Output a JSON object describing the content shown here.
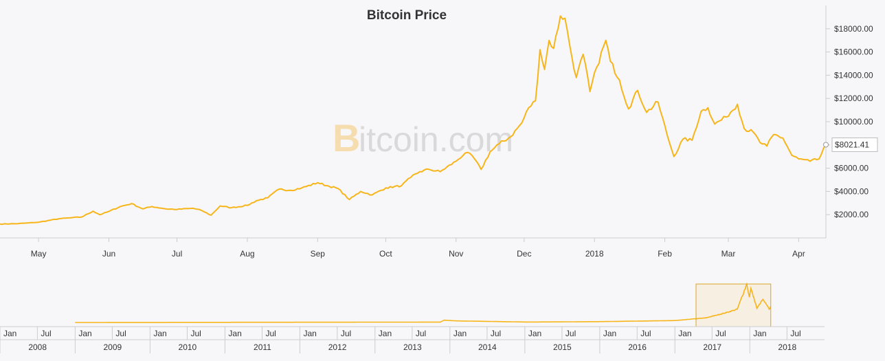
{
  "chart_data": {
    "type": "line",
    "title": "Bitcoin Price",
    "watermark": "Bitcoin.com",
    "line_color": "#f7b519",
    "current_value_label": "$8021.41",
    "current_value": 8021.41,
    "y_axis": {
      "position": "right",
      "range": [
        0,
        20000
      ],
      "tick_values": [
        2000,
        4000,
        6000,
        8000,
        10000,
        12000,
        14000,
        16000,
        18000
      ],
      "tick_labels": [
        "$2000.00",
        "$4000.00",
        "$6000.00",
        "$8000.00",
        "$10000.00",
        "$12000.00",
        "$14000.00",
        "$16000.00",
        "$18000.00"
      ]
    },
    "x_axis": {
      "range": [
        "2017-04-14",
        "2018-04-13"
      ],
      "tick_dates": [
        "2017-05-01",
        "2017-06-01",
        "2017-07-01",
        "2017-08-01",
        "2017-09-01",
        "2017-10-01",
        "2017-11-01",
        "2017-12-01",
        "2018-01-01",
        "2018-02-01",
        "2018-03-01",
        "2018-04-01"
      ],
      "tick_labels": [
        "May",
        "Jun",
        "Jul",
        "Aug",
        "Sep",
        "Oct",
        "Nov",
        "Dec",
        "2018",
        "Feb",
        "Mar",
        "Apr"
      ]
    },
    "series": [
      {
        "values": [
          {
            "x": "2017-04-14",
            "y": 1190
          },
          {
            "x": "2017-04-22",
            "y": 1230
          },
          {
            "x": "2017-05-01",
            "y": 1350
          },
          {
            "x": "2017-05-10",
            "y": 1650
          },
          {
            "x": "2017-05-15",
            "y": 1730
          },
          {
            "x": "2017-05-20",
            "y": 1800
          },
          {
            "x": "2017-05-25",
            "y": 2300
          },
          {
            "x": "2017-05-28",
            "y": 2000
          },
          {
            "x": "2017-06-01",
            "y": 2280
          },
          {
            "x": "2017-06-06",
            "y": 2700
          },
          {
            "x": "2017-06-11",
            "y": 2950
          },
          {
            "x": "2017-06-16",
            "y": 2500
          },
          {
            "x": "2017-06-20",
            "y": 2700
          },
          {
            "x": "2017-06-26",
            "y": 2500
          },
          {
            "x": "2017-07-01",
            "y": 2450
          },
          {
            "x": "2017-07-08",
            "y": 2550
          },
          {
            "x": "2017-07-12",
            "y": 2350
          },
          {
            "x": "2017-07-16",
            "y": 1950
          },
          {
            "x": "2017-07-20",
            "y": 2750
          },
          {
            "x": "2017-07-25",
            "y": 2600
          },
          {
            "x": "2017-08-01",
            "y": 2800
          },
          {
            "x": "2017-08-05",
            "y": 3200
          },
          {
            "x": "2017-08-10",
            "y": 3450
          },
          {
            "x": "2017-08-15",
            "y": 4200
          },
          {
            "x": "2017-08-20",
            "y": 4100
          },
          {
            "x": "2017-08-25",
            "y": 4300
          },
          {
            "x": "2017-09-01",
            "y": 4750
          },
          {
            "x": "2017-09-05",
            "y": 4500
          },
          {
            "x": "2017-09-10",
            "y": 4250
          },
          {
            "x": "2017-09-15",
            "y": 3300
          },
          {
            "x": "2017-09-20",
            "y": 4000
          },
          {
            "x": "2017-09-25",
            "y": 3700
          },
          {
            "x": "2017-10-01",
            "y": 4300
          },
          {
            "x": "2017-10-08",
            "y": 4500
          },
          {
            "x": "2017-10-12",
            "y": 5200
          },
          {
            "x": "2017-10-16",
            "y": 5700
          },
          {
            "x": "2017-10-20",
            "y": 5900
          },
          {
            "x": "2017-10-25",
            "y": 5700
          },
          {
            "x": "2017-11-01",
            "y": 6600
          },
          {
            "x": "2017-11-05",
            "y": 7300
          },
          {
            "x": "2017-11-08",
            "y": 7100
          },
          {
            "x": "2017-11-12",
            "y": 5900
          },
          {
            "x": "2017-11-16",
            "y": 7400
          },
          {
            "x": "2017-11-20",
            "y": 8100
          },
          {
            "x": "2017-11-25",
            "y": 8700
          },
          {
            "x": "2017-11-30",
            "y": 9900
          },
          {
            "x": "2017-12-03",
            "y": 11200
          },
          {
            "x": "2017-12-06",
            "y": 11800
          },
          {
            "x": "2017-12-08",
            "y": 16200
          },
          {
            "x": "2017-12-10",
            "y": 14500
          },
          {
            "x": "2017-12-12",
            "y": 17000
          },
          {
            "x": "2017-12-14",
            "y": 16300
          },
          {
            "x": "2017-12-17",
            "y": 19100
          },
          {
            "x": "2017-12-19",
            "y": 18900
          },
          {
            "x": "2017-12-22",
            "y": 15600
          },
          {
            "x": "2017-12-24",
            "y": 13800
          },
          {
            "x": "2017-12-27",
            "y": 15800
          },
          {
            "x": "2017-12-30",
            "y": 12600
          },
          {
            "x": "2018-01-02",
            "y": 14700
          },
          {
            "x": "2018-01-06",
            "y": 17000
          },
          {
            "x": "2018-01-08",
            "y": 15200
          },
          {
            "x": "2018-01-12",
            "y": 13600
          },
          {
            "x": "2018-01-16",
            "y": 11100
          },
          {
            "x": "2018-01-20",
            "y": 12700
          },
          {
            "x": "2018-01-24",
            "y": 10800
          },
          {
            "x": "2018-01-29",
            "y": 11700
          },
          {
            "x": "2018-02-02",
            "y": 8900
          },
          {
            "x": "2018-02-05",
            "y": 7000
          },
          {
            "x": "2018-02-09",
            "y": 8500
          },
          {
            "x": "2018-02-13",
            "y": 8400
          },
          {
            "x": "2018-02-17",
            "y": 10900
          },
          {
            "x": "2018-02-20",
            "y": 11200
          },
          {
            "x": "2018-02-23",
            "y": 9800
          },
          {
            "x": "2018-02-28",
            "y": 10400
          },
          {
            "x": "2018-03-05",
            "y": 11500
          },
          {
            "x": "2018-03-08",
            "y": 9400
          },
          {
            "x": "2018-03-12",
            "y": 9100
          },
          {
            "x": "2018-03-15",
            "y": 8200
          },
          {
            "x": "2018-03-18",
            "y": 7900
          },
          {
            "x": "2018-03-21",
            "y": 8900
          },
          {
            "x": "2018-03-25",
            "y": 8600
          },
          {
            "x": "2018-03-29",
            "y": 7100
          },
          {
            "x": "2018-04-01",
            "y": 6800
          },
          {
            "x": "2018-04-06",
            "y": 6600
          },
          {
            "x": "2018-04-10",
            "y": 6800
          },
          {
            "x": "2018-04-13",
            "y": 8021
          }
        ]
      }
    ],
    "navigator": {
      "range": [
        "2008-01-01",
        "2018-12-31"
      ],
      "selection": [
        "2017-04-14",
        "2018-04-13"
      ],
      "month_labels": [
        "Jan",
        "Jul"
      ],
      "year_labels": [
        "2008",
        "2009",
        "2010",
        "2011",
        "2012",
        "2013",
        "2014",
        "2015",
        "2016",
        "2017",
        "2018"
      ],
      "series": [
        {
          "x": "2009-01-01",
          "y": 0
        },
        {
          "x": "2013-11-15",
          "y": 200
        },
        {
          "x": "2013-12-04",
          "y": 1150
        },
        {
          "x": "2014-02-01",
          "y": 800
        },
        {
          "x": "2015-01-15",
          "y": 220
        },
        {
          "x": "2016-01-01",
          "y": 430
        },
        {
          "x": "2016-12-31",
          "y": 960
        },
        {
          "x": "2017-06-01",
          "y": 2300
        },
        {
          "x": "2017-09-01",
          "y": 4700
        },
        {
          "x": "2017-11-01",
          "y": 6600
        },
        {
          "x": "2017-12-17",
          "y": 19100
        },
        {
          "x": "2017-12-30",
          "y": 12600
        },
        {
          "x": "2018-01-06",
          "y": 17000
        },
        {
          "x": "2018-02-05",
          "y": 7000
        },
        {
          "x": "2018-03-05",
          "y": 11500
        },
        {
          "x": "2018-04-06",
          "y": 6600
        },
        {
          "x": "2018-04-13",
          "y": 8021
        }
      ]
    }
  }
}
